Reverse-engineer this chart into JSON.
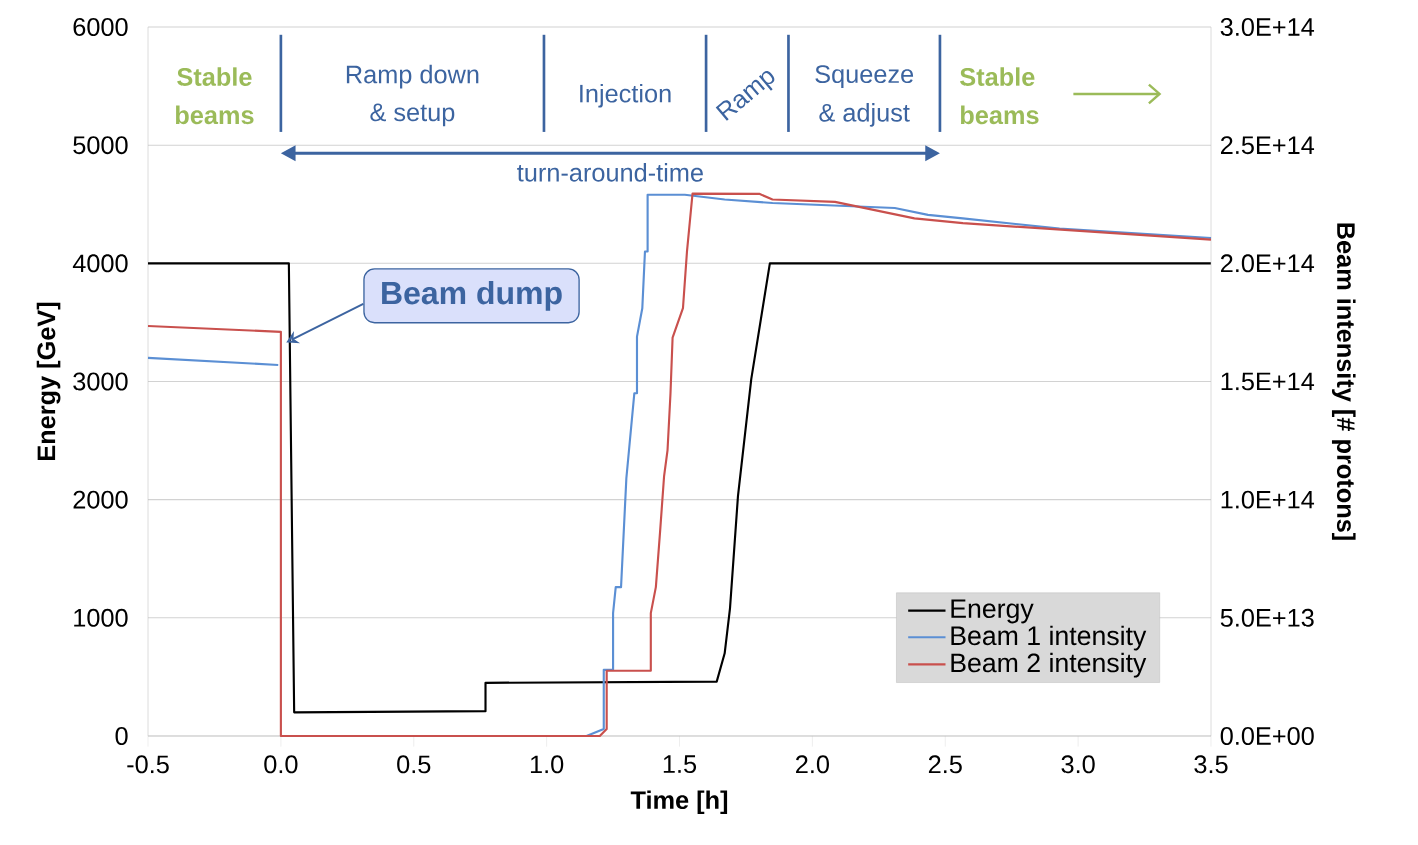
{
  "chart_data": {
    "type": "line",
    "xlabel": "Time [h]",
    "ylabel": "Energy [GeV]",
    "y2label": "Beam intensity [# protons]",
    "xlim": [
      -0.5,
      3.5
    ],
    "ylim": [
      0,
      6000
    ],
    "y2lim": [
      0,
      300000000000000.0
    ],
    "xticks": [
      {
        "value": -0.5,
        "label": "-0.5"
      },
      {
        "value": 0,
        "label": "0.0"
      },
      {
        "value": 0.5,
        "label": "0.5"
      },
      {
        "value": 1,
        "label": "1.0"
      },
      {
        "value": 1.5,
        "label": "1.5"
      },
      {
        "value": 2,
        "label": "2.0"
      },
      {
        "value": 2.5,
        "label": "2.5"
      },
      {
        "value": 3,
        "label": "3.0"
      },
      {
        "value": 3.5,
        "label": "3.5"
      }
    ],
    "yticks": [
      0,
      1000,
      2000,
      3000,
      4000,
      5000,
      6000
    ],
    "y2ticks": [
      {
        "value": 0,
        "label": "0.0E+00"
      },
      {
        "value": 50000000000000.0,
        "label": "5.0E+13"
      },
      {
        "value": 100000000000000.0,
        "label": "1.0E+14"
      },
      {
        "value": 150000000000000.0,
        "label": "1.5E+14"
      },
      {
        "value": 200000000000000.0,
        "label": "2.0E+14"
      },
      {
        "value": 250000000000000.0,
        "label": "2.5E+14"
      },
      {
        "value": 300000000000000.0,
        "label": "3.0E+14"
      }
    ],
    "grid": "y",
    "legend": "bottom right",
    "marker": "none",
    "series": [
      {
        "name": "Energy",
        "color": "#000000",
        "x": [
          -0.5,
          0.03,
          0.05,
          0.77,
          0.77,
          1.64,
          1.67,
          1.69,
          1.72,
          1.77,
          1.84,
          2.0,
          3.5
        ],
        "values": [
          4000,
          4000,
          200,
          210,
          450,
          460,
          700,
          1080,
          2030,
          3020,
          4000,
          4000,
          4000
        ]
      },
      {
        "name": "Beam 1 intensity",
        "color": "#5b8fd4",
        "axis": "y2",
        "x": [
          -0.5,
          -0.01,
          0.5,
          1.15,
          1.215,
          1.215,
          1.25,
          1.25,
          1.26,
          1.28,
          1.3,
          1.31,
          1.33,
          1.34,
          1.34,
          1.36,
          1.37,
          1.38,
          1.38,
          1.52,
          1.67,
          1.85,
          2.31,
          2.435,
          2.566,
          2.93,
          3.5
        ],
        "values": [
          160000000000000.0,
          157000000000000.0,
          null,
          0,
          3000000000000.0,
          28000000000000.0,
          28000000000000.0,
          52000000000000.0,
          63000000000000.0,
          63000000000000.0,
          109000000000000.0,
          121000000000000.0,
          145000000000000.0,
          145000000000000.0,
          169000000000000.0,
          181000000000000.0,
          205000000000000.0,
          205000000000000.0,
          229000000000000.0,
          229000000000000.0,
          227000000000000.0,
          225500000000000.0,
          223400000000000.0,
          220500000000000.0,
          219000000000000.0,
          214700000000000.0,
          210700000000000.0
        ]
      },
      {
        "name": "Beam 2 intensity",
        "color": "#c9504d",
        "axis": "y2",
        "x": [
          -0.5,
          0.0,
          0.0,
          1.2,
          1.226,
          1.226,
          1.392,
          1.392,
          1.411,
          1.427,
          1.442,
          1.455,
          1.466,
          1.474,
          1.513,
          1.528,
          1.549,
          1.8,
          1.85,
          2.085,
          2.384,
          2.566,
          3.5
        ],
        "values": [
          173500000000000.0,
          171000000000000.0,
          0,
          0,
          3000000000000.0,
          27600000000000.0,
          27600000000000.0,
          52000000000000.0,
          63000000000000.0,
          86600000000000.0,
          110000000000000.0,
          121000000000000.0,
          144800000000000.0,
          168600000000000.0,
          181000000000000.0,
          204800000000000.0,
          229500000000000.0,
          229400000000000.0,
          227000000000000.0,
          226000000000000.0,
          219000000000000.0,
          217000000000000.0,
          210000000000000.0
        ]
      }
    ],
    "ref_lines": [
      {
        "axis": "x",
        "value": 0.0,
        "color": "#3c64a0"
      },
      {
        "axis": "x",
        "value": 0.99,
        "color": "#3c64a0"
      },
      {
        "axis": "x",
        "value": 1.6,
        "color": "#3c64a0"
      },
      {
        "axis": "x",
        "value": 1.91,
        "color": "#3c64a0"
      },
      {
        "axis": "x",
        "value": 2.48,
        "color": "#3c64a0"
      }
    ],
    "annotations": [
      "Stable",
      "beams",
      "Ramp down",
      "& setup",
      "Injection",
      "Ramp",
      "Squeeze",
      "& adjust",
      "Stable",
      "beams",
      "turn-around-time",
      {
        "text": "Beam dump",
        "x": 0.02,
        "y": 3330
      }
    ]
  }
}
